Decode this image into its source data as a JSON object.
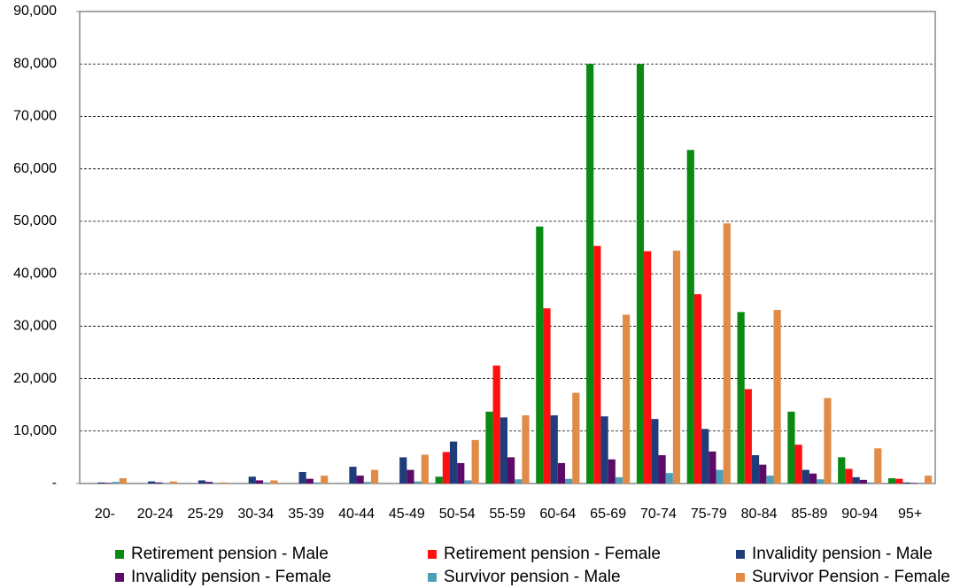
{
  "chart_data": {
    "type": "bar",
    "categories": [
      "20-",
      "20-24",
      "25-29",
      "30-34",
      "35-39",
      "40-44",
      "45-49",
      "50-54",
      "55-59",
      "60-64",
      "65-69",
      "70-74",
      "75-79",
      "80-84",
      "85-89",
      "90-94",
      "95+"
    ],
    "series": [
      {
        "name": "Retirement pension - Male",
        "color": "#0a8a12",
        "values": [
          0,
          0,
          0,
          0,
          0,
          0,
          0,
          1300,
          13700,
          49000,
          80000,
          80000,
          63600,
          32700,
          13700,
          5000,
          1000
        ]
      },
      {
        "name": "Retirement pension - Female",
        "color": "#ff1010",
        "values": [
          0,
          0,
          0,
          0,
          0,
          0,
          0,
          6000,
          22500,
          33400,
          45300,
          44300,
          36100,
          18000,
          7400,
          2800,
          900
        ]
      },
      {
        "name": "Invalidity pension - Male",
        "color": "#1f3d7a",
        "values": [
          200,
          400,
          600,
          1300,
          2200,
          3200,
          5000,
          8000,
          12600,
          13000,
          12800,
          12300,
          10400,
          5400,
          2600,
          1200,
          200
        ]
      },
      {
        "name": "Invalidity pension - Female",
        "color": "#5c0c68",
        "values": [
          100,
          200,
          300,
          600,
          900,
          1500,
          2600,
          3900,
          5000,
          3900,
          4600,
          5400,
          6100,
          3600,
          1900,
          700,
          100
        ]
      },
      {
        "name": "Survivor pension - Male",
        "color": "#4d9fb8",
        "values": [
          300,
          100,
          100,
          200,
          200,
          300,
          400,
          600,
          800,
          900,
          1200,
          2000,
          2600,
          1500,
          800,
          200,
          100
        ]
      },
      {
        "name": "Survivor Pension - Female",
        "color": "#e08c48",
        "values": [
          1000,
          400,
          200,
          600,
          1500,
          2600,
          5500,
          8300,
          13000,
          17300,
          32200,
          44400,
          49600,
          33100,
          16300,
          6700,
          1500
        ]
      }
    ],
    "ylim": [
      0,
      90000
    ],
    "yticks": [
      {
        "value": 0,
        "label": "-"
      },
      {
        "value": 10000,
        "label": "10,000"
      },
      {
        "value": 20000,
        "label": "20,000"
      },
      {
        "value": 30000,
        "label": "30,000"
      },
      {
        "value": 40000,
        "label": "40,000"
      },
      {
        "value": 50000,
        "label": "50,000"
      },
      {
        "value": 60000,
        "label": "60,000"
      },
      {
        "value": 70000,
        "label": "70,000"
      },
      {
        "value": 80000,
        "label": "80,000"
      },
      {
        "value": 90000,
        "label": "90,000"
      }
    ],
    "grid": true
  }
}
